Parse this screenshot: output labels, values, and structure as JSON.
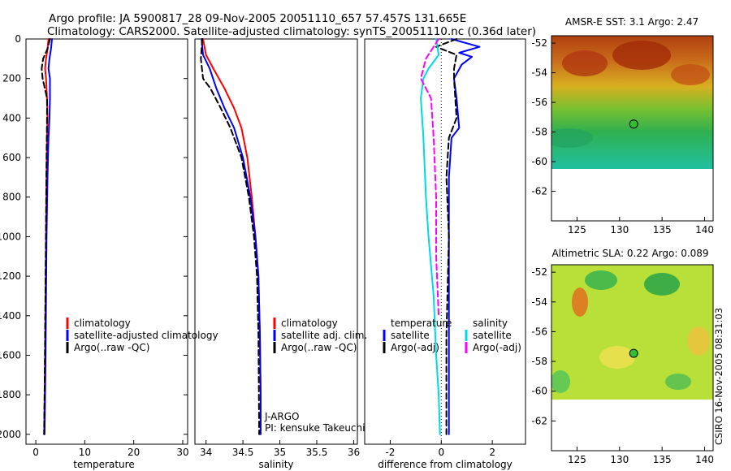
{
  "header": {
    "line1": "Argo profile: JA 5900817_28 09-Nov-2005 20051110_657 57.457S 131.665E",
    "line2": "Climatology: CARS2000. Satellite-adjusted climatology: synTS_20051110.nc (0.36d later)"
  },
  "footer": {
    "stamp": "CSIRO 16-Nov-2005 08:31:03"
  },
  "chart_data": [
    {
      "type": "line",
      "panel": "temperature",
      "xlabel": "temperature",
      "ylabel": "",
      "xlim": [
        -2,
        31
      ],
      "ylim": [
        2050,
        0
      ],
      "y_reversed": true,
      "xticks": [
        0,
        10,
        20,
        30
      ],
      "yticks": [
        0,
        200,
        400,
        600,
        800,
        1000,
        1200,
        1400,
        1600,
        1800,
        2000
      ],
      "legend": [
        "climatology",
        "satellite-adjusted climatology",
        "Argo(..raw -QC)"
      ],
      "series": [
        {
          "name": "climatology",
          "color": "#ff0000",
          "style": "solid",
          "x": [
            2.6,
            2.4,
            2.1,
            1.9,
            2.1,
            2.3,
            2.4,
            2.3,
            2.2,
            2.1,
            2.0,
            1.9,
            1.8,
            1.7
          ],
          "y": [
            0,
            50,
            100,
            150,
            200,
            300,
            400,
            500,
            700,
            1000,
            1300,
            1600,
            1800,
            2000
          ]
        },
        {
          "name": "satellite-adjusted climatology",
          "color": "#0000ff",
          "style": "solid",
          "x": [
            3.3,
            3.1,
            2.8,
            2.6,
            2.9,
            2.9,
            2.8,
            2.6,
            2.4,
            2.2,
            2.1,
            2.0,
            1.9,
            1.8
          ],
          "y": [
            0,
            50,
            100,
            150,
            200,
            300,
            400,
            500,
            700,
            1000,
            1300,
            1600,
            1800,
            2000
          ]
        },
        {
          "name": "Argo(..raw -QC)",
          "color": "#000000",
          "style": "dashed",
          "x": [
            2.9,
            2.4,
            1.5,
            1.2,
            1.4,
            2.3,
            2.3,
            2.2,
            2.1,
            2.0,
            1.9,
            1.8,
            1.7
          ],
          "y": [
            0,
            50,
            100,
            150,
            200,
            300,
            400,
            600,
            900,
            1200,
            1500,
            1800,
            2000
          ]
        }
      ]
    },
    {
      "type": "line",
      "panel": "salinity",
      "xlabel": "salinity",
      "ylabel": "",
      "xlim": [
        33.85,
        36.05
      ],
      "ylim": [
        2050,
        0
      ],
      "y_reversed": true,
      "xticks": [
        34,
        34.5,
        35,
        35.5,
        36
      ],
      "xtick_labels": [
        "34",
        "34.5",
        "35",
        "35.5",
        "36"
      ],
      "legend": [
        "climatology",
        "satellite adj. clim.",
        "Argo(..raw -QC)"
      ],
      "annotation": [
        "J-ARGO",
        "PI: kensuke Takeuchi"
      ],
      "series": [
        {
          "name": "climatology",
          "color": "#ff0000",
          "style": "solid",
          "x": [
            33.96,
            34.0,
            34.1,
            34.25,
            34.38,
            34.48,
            34.56,
            34.62,
            34.67,
            34.71,
            34.73,
            34.74,
            34.74
          ],
          "y": [
            0,
            80,
            150,
            250,
            350,
            450,
            600,
            800,
            1000,
            1200,
            1500,
            1800,
            2000
          ]
        },
        {
          "name": "satellite adj. clim.",
          "color": "#0000ff",
          "style": "solid",
          "x": [
            33.94,
            33.96,
            34.05,
            34.14,
            34.25,
            34.38,
            34.5,
            34.6,
            34.67,
            34.71,
            34.73,
            34.74,
            34.74
          ],
          "y": [
            0,
            80,
            150,
            250,
            350,
            450,
            600,
            800,
            1000,
            1200,
            1500,
            1800,
            2000
          ]
        },
        {
          "name": "Argo(..raw -QC)",
          "color": "#000000",
          "style": "dashed",
          "x": [
            33.95,
            33.93,
            33.96,
            34.06,
            34.2,
            34.33,
            34.48,
            34.58,
            34.65,
            34.69,
            34.71,
            34.72
          ],
          "y": [
            0,
            100,
            200,
            250,
            350,
            450,
            600,
            800,
            1000,
            1200,
            1500,
            2000
          ]
        }
      ]
    },
    {
      "type": "line",
      "panel": "difference",
      "xlabel": "difference from climatology",
      "ylabel": "",
      "xlim": [
        -3,
        3.3
      ],
      "ylim": [
        2050,
        0
      ],
      "y_reversed": true,
      "xticks": [
        -2,
        0,
        2
      ],
      "legend": [
        "temperature",
        "satellite",
        "Argo(-adj)",
        "salinity",
        "satellite",
        "Argo(-adj)"
      ],
      "series": [
        {
          "name": "satellite",
          "group": "temperature",
          "color": "#0000ff",
          "style": "solid",
          "x": [
            0.4,
            1.5,
            0.7,
            1.2,
            0.8,
            0.5,
            0.6,
            0.7,
            0.4,
            0.3,
            0.3,
            0.3,
            0.3
          ],
          "y": [
            0,
            40,
            70,
            90,
            130,
            200,
            300,
            450,
            500,
            700,
            1000,
            1500,
            2000
          ]
        },
        {
          "name": "Argo(-adj)",
          "group": "temperature",
          "color": "#000000",
          "style": "dashed",
          "x": [
            0.6,
            -0.2,
            0.6,
            0.5,
            0.5,
            0.6,
            0.3,
            0.2,
            0.3,
            0.2,
            0.2,
            0.2
          ],
          "y": [
            0,
            40,
            80,
            150,
            200,
            400,
            500,
            700,
            1000,
            1500,
            1800,
            2000
          ]
        },
        {
          "name": "satellite",
          "group": "salinity",
          "color": "#00d8e8",
          "style": "solid",
          "x": [
            -0.2,
            -0.1,
            -0.5,
            -0.7,
            -0.8,
            -0.7,
            -0.6,
            -0.5,
            -0.3,
            -0.2,
            -0.1,
            -0.05
          ],
          "y": [
            0,
            80,
            150,
            200,
            300,
            500,
            800,
            1000,
            1300,
            1600,
            1800,
            2000
          ]
        },
        {
          "name": "Argo(-adj)",
          "group": "salinity",
          "color": "#ff00ff",
          "style": "dashed",
          "x": [
            -0.1,
            -0.6,
            -0.8,
            -0.4,
            -0.3,
            -0.2,
            -0.2,
            -0.1
          ],
          "y": [
            0,
            100,
            200,
            300,
            500,
            800,
            1100,
            1400
          ]
        }
      ]
    },
    {
      "type": "heatmap",
      "panel": "map-sst",
      "title": "AMSR-E SST: 3.1 Argo: 2.47",
      "xlim": [
        122,
        141
      ],
      "ylim": [
        -64,
        -51.5
      ],
      "xticks": [
        125,
        130,
        135,
        140
      ],
      "yticks": [
        -52,
        -54,
        -56,
        -58,
        -60,
        -62
      ],
      "data_lat_min": -60,
      "marker": {
        "lon": 131.665,
        "lat": -57.457
      }
    },
    {
      "type": "heatmap",
      "panel": "map-sla",
      "title": "Altimetric SLA: 0.22 Argo: 0.089",
      "xlim": [
        122,
        141
      ],
      "ylim": [
        -64,
        -51.5
      ],
      "xticks": [
        125,
        130,
        135,
        140
      ],
      "yticks": [
        -52,
        -54,
        -56,
        -58,
        -60,
        -62
      ],
      "data_lat_min": -60,
      "marker": {
        "lon": 131.665,
        "lat": -57.457
      }
    }
  ]
}
